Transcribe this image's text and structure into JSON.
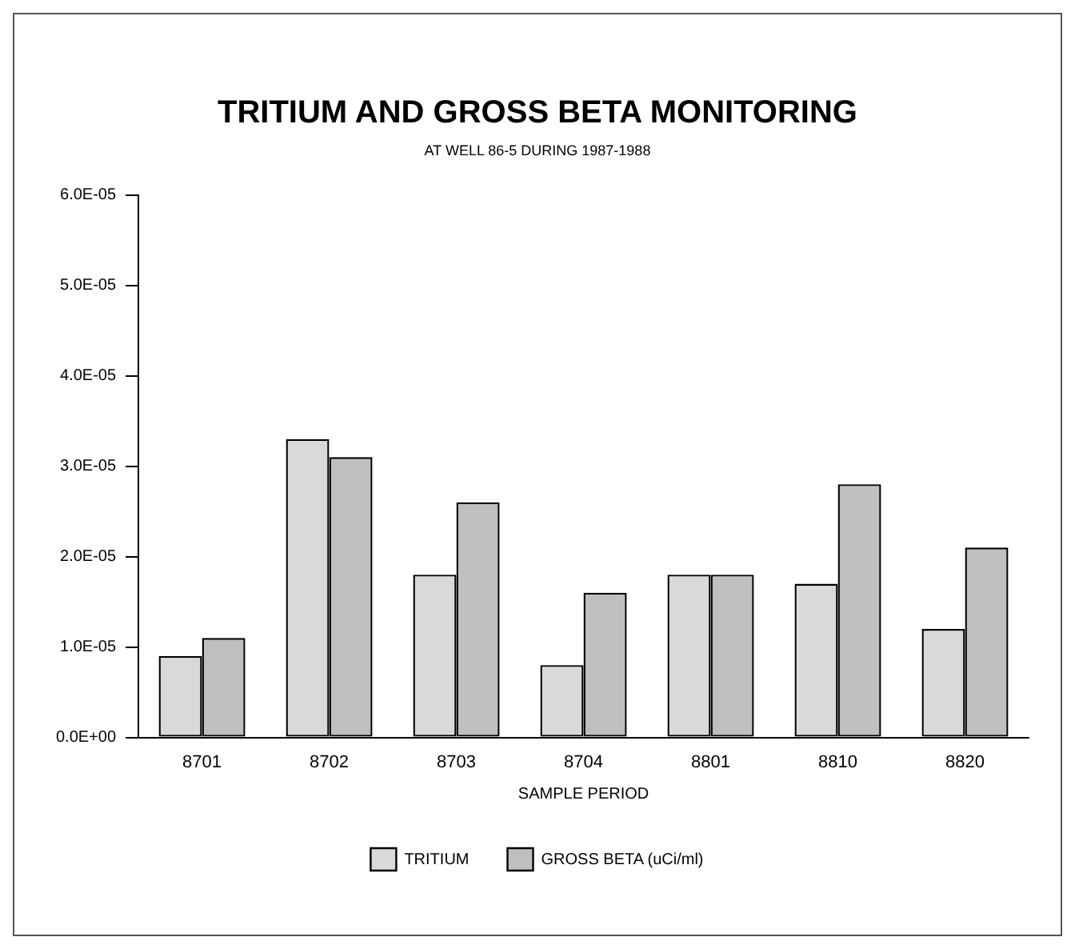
{
  "chart_data": {
    "type": "bar",
    "title": "TRITIUM AND GROSS BETA MONITORING",
    "subtitle": "AT WELL 86-5 DURING 1987-1988",
    "xlabel": "SAMPLE PERIOD",
    "categories": [
      "8701",
      "8702",
      "8703",
      "8704",
      "8801",
      "8810",
      "8820"
    ],
    "series": [
      {
        "name": "TRITIUM",
        "color": "#d9d9d9",
        "values": [
          9e-06,
          3.3e-05,
          1.8e-05,
          8e-06,
          1.8e-05,
          1.7e-05,
          1.2e-05
        ]
      },
      {
        "name": "GROSS BETA (uCi/ml)",
        "color": "#bfbfbf",
        "values": [
          1.1e-05,
          3.1e-05,
          2.6e-05,
          1.6e-05,
          1.8e-05,
          2.8e-05,
          2.1e-05
        ]
      }
    ],
    "ylim": [
      0,
      6e-05
    ],
    "yticks": [
      {
        "value": 0,
        "label": "0.0E+00"
      },
      {
        "value": 1e-05,
        "label": "1.0E-05"
      },
      {
        "value": 2e-05,
        "label": "2.0E-05"
      },
      {
        "value": 3e-05,
        "label": "3.0E-05"
      },
      {
        "value": 4e-05,
        "label": "4.0E-05"
      },
      {
        "value": 5e-05,
        "label": "5.0E-05"
      },
      {
        "value": 6e-05,
        "label": "6.0E-05"
      }
    ],
    "grid": false,
    "legend": "bottom"
  }
}
